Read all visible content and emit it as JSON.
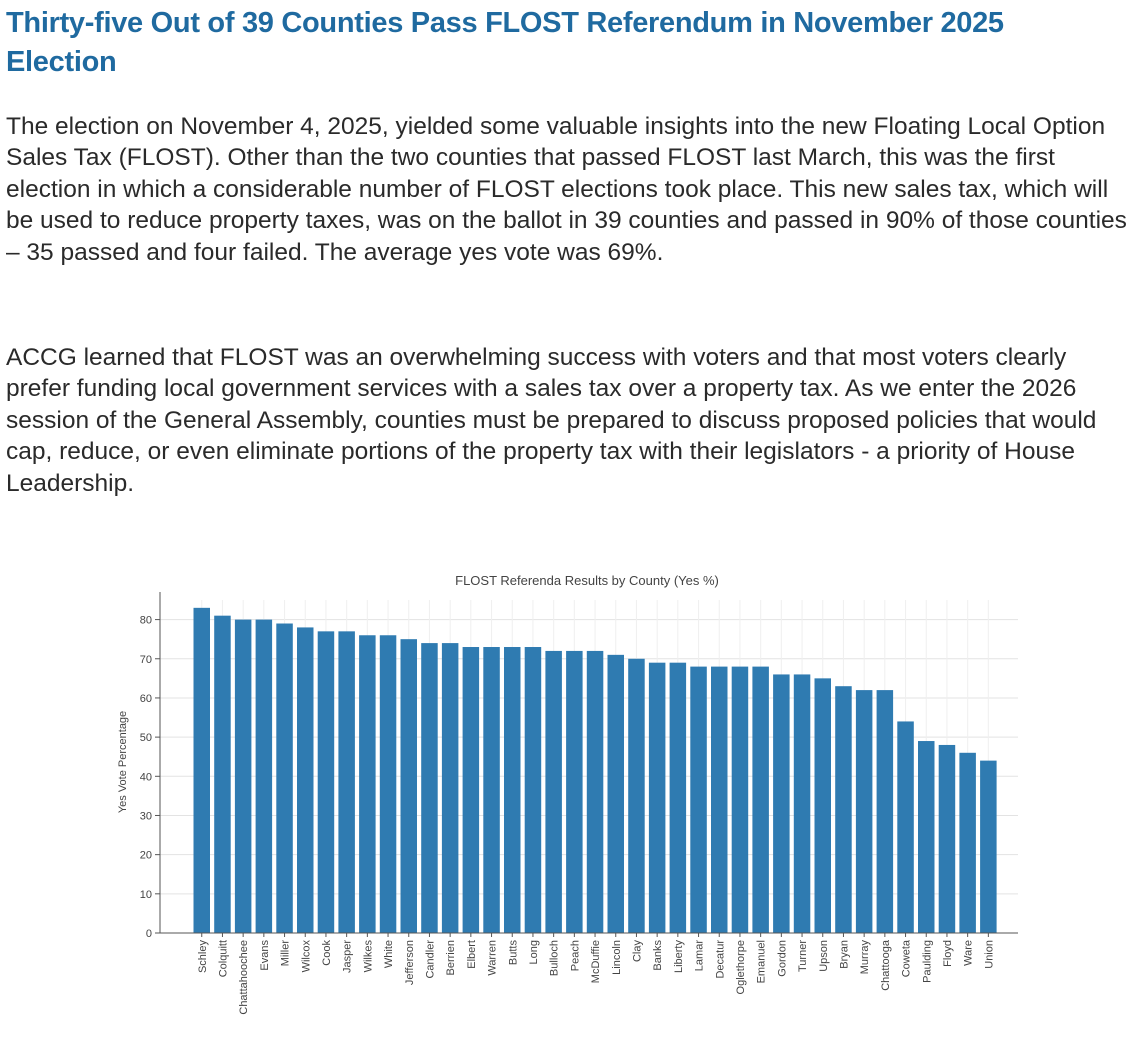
{
  "article": {
    "headline": "Thirty-five Out of 39 Counties Pass FLOST Referendum in November 2025 Election",
    "paragraphs": [
      "The election on November 4, 2025, yielded some valuable insights into the new Floating Local Option Sales Tax (FLOST). Other than the two counties that passed FLOST last March, this was the first election in which a considerable number of FLOST elections took place. This new sales tax, which will be used to reduce property taxes, was on the ballot in 39 counties and passed in 90% of those counties – 35 passed and four failed. The average yes vote was 69%.",
      "ACCG learned that FLOST was an overwhelming success with voters and that most voters clearly prefer funding local government services with a sales tax over a property tax. As we enter the 2026 session of the General Assembly, counties must be prepared to discuss proposed policies that would cap, reduce, or even eliminate portions of the property tax with their legislators - a priority of House Leadership."
    ]
  },
  "chart_data": {
    "type": "bar",
    "title": "FLOST Referenda Results by County (Yes %)",
    "xlabel": "",
    "ylabel": "Yes Vote Percentage",
    "ylim": [
      0,
      85
    ],
    "yticks": [
      0,
      10,
      20,
      30,
      40,
      50,
      60,
      70,
      80
    ],
    "grid": true,
    "bar_color": "#2f7bb1",
    "categories": [
      "Schley",
      "Colquitt",
      "Chattahoochee",
      "Evans",
      "Miller",
      "Wilcox",
      "Cook",
      "Jasper",
      "Wilkes",
      "White",
      "Jefferson",
      "Candler",
      "Berrien",
      "Elbert",
      "Warren",
      "Butts",
      "Long",
      "Bulloch",
      "Peach",
      "McDuffie",
      "Lincoln",
      "Clay",
      "Banks",
      "Liberty",
      "Lamar",
      "Decatur",
      "Oglethorpe",
      "Emanuel",
      "Gordon",
      "Turner",
      "Upson",
      "Bryan",
      "Murray",
      "Chattooga",
      "Coweta",
      "Paulding",
      "Floyd",
      "Ware",
      "Union"
    ],
    "values": [
      83,
      81,
      80,
      80,
      79,
      78,
      77,
      77,
      76,
      76,
      75,
      74,
      74,
      73,
      73,
      73,
      73,
      72,
      72,
      72,
      71,
      70,
      69,
      69,
      68,
      68,
      68,
      68,
      66,
      66,
      65,
      63,
      62,
      62,
      54,
      49,
      48,
      46,
      44
    ]
  }
}
